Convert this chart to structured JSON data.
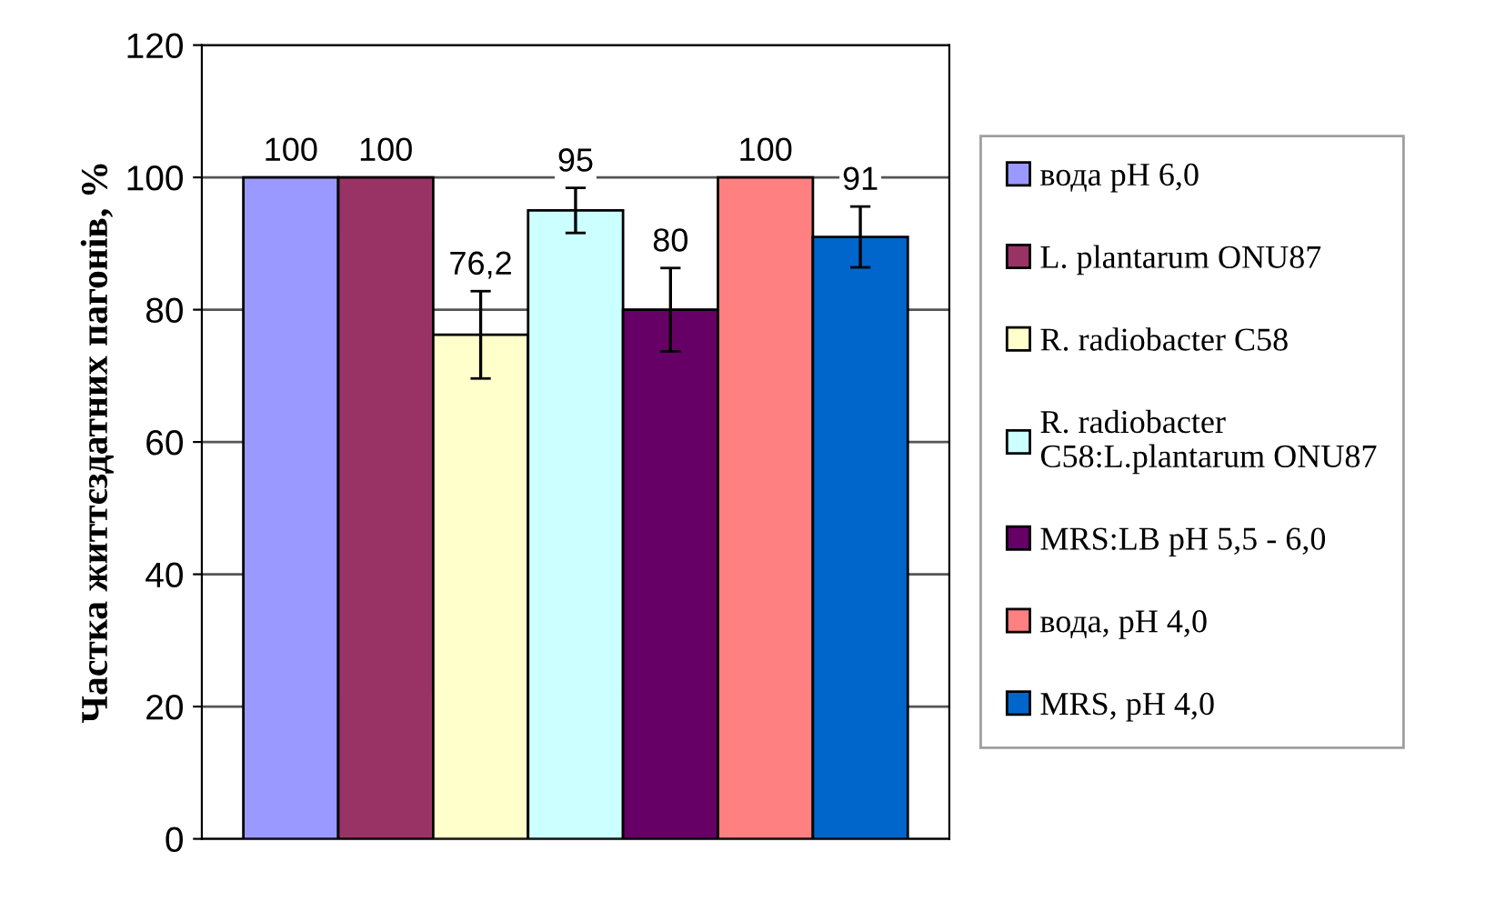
{
  "chart_data": {
    "type": "bar",
    "ylabel": "Частка життєздатних пагонів, %",
    "categories": [
      null
    ],
    "series": [
      {
        "name": "вода pH 6,0",
        "color": "#9999ff",
        "values": [
          100
        ],
        "errors": [
          null
        ],
        "value_labels": [
          "100"
        ]
      },
      {
        "name": "L. plantarum ONU87",
        "color": "#993366",
        "values": [
          100
        ],
        "errors": [
          null
        ],
        "value_labels": [
          "100"
        ]
      },
      {
        "name": "R. radiobacter C58",
        "color": "#ffffcc",
        "values": [
          76.2
        ],
        "errors": [
          6.6
        ],
        "value_labels": [
          "76,2"
        ]
      },
      {
        "name": "R. radiobacter\nC58:L.plantarum ONU87",
        "color": "#ccffff",
        "values": [
          95
        ],
        "errors": [
          3.4
        ],
        "value_labels": [
          "95"
        ]
      },
      {
        "name": "MRS:LB pH 5,5 - 6,0",
        "color": "#660066",
        "values": [
          80
        ],
        "errors": [
          6.3
        ],
        "value_labels": [
          "80"
        ]
      },
      {
        "name": "вода, pH 4,0",
        "color": "#ff8080",
        "values": [
          100
        ],
        "errors": [
          null
        ],
        "value_labels": [
          "100"
        ]
      },
      {
        "name": "MRS, pH 4,0",
        "color": "#0066cc",
        "values": [
          91
        ],
        "errors": [
          4.6
        ],
        "value_labels": [
          "91"
        ]
      }
    ],
    "ylim": [
      0,
      120
    ],
    "yticks": [
      0,
      20,
      40,
      60,
      80,
      100,
      120
    ],
    "grid": "y",
    "legend": "right"
  }
}
